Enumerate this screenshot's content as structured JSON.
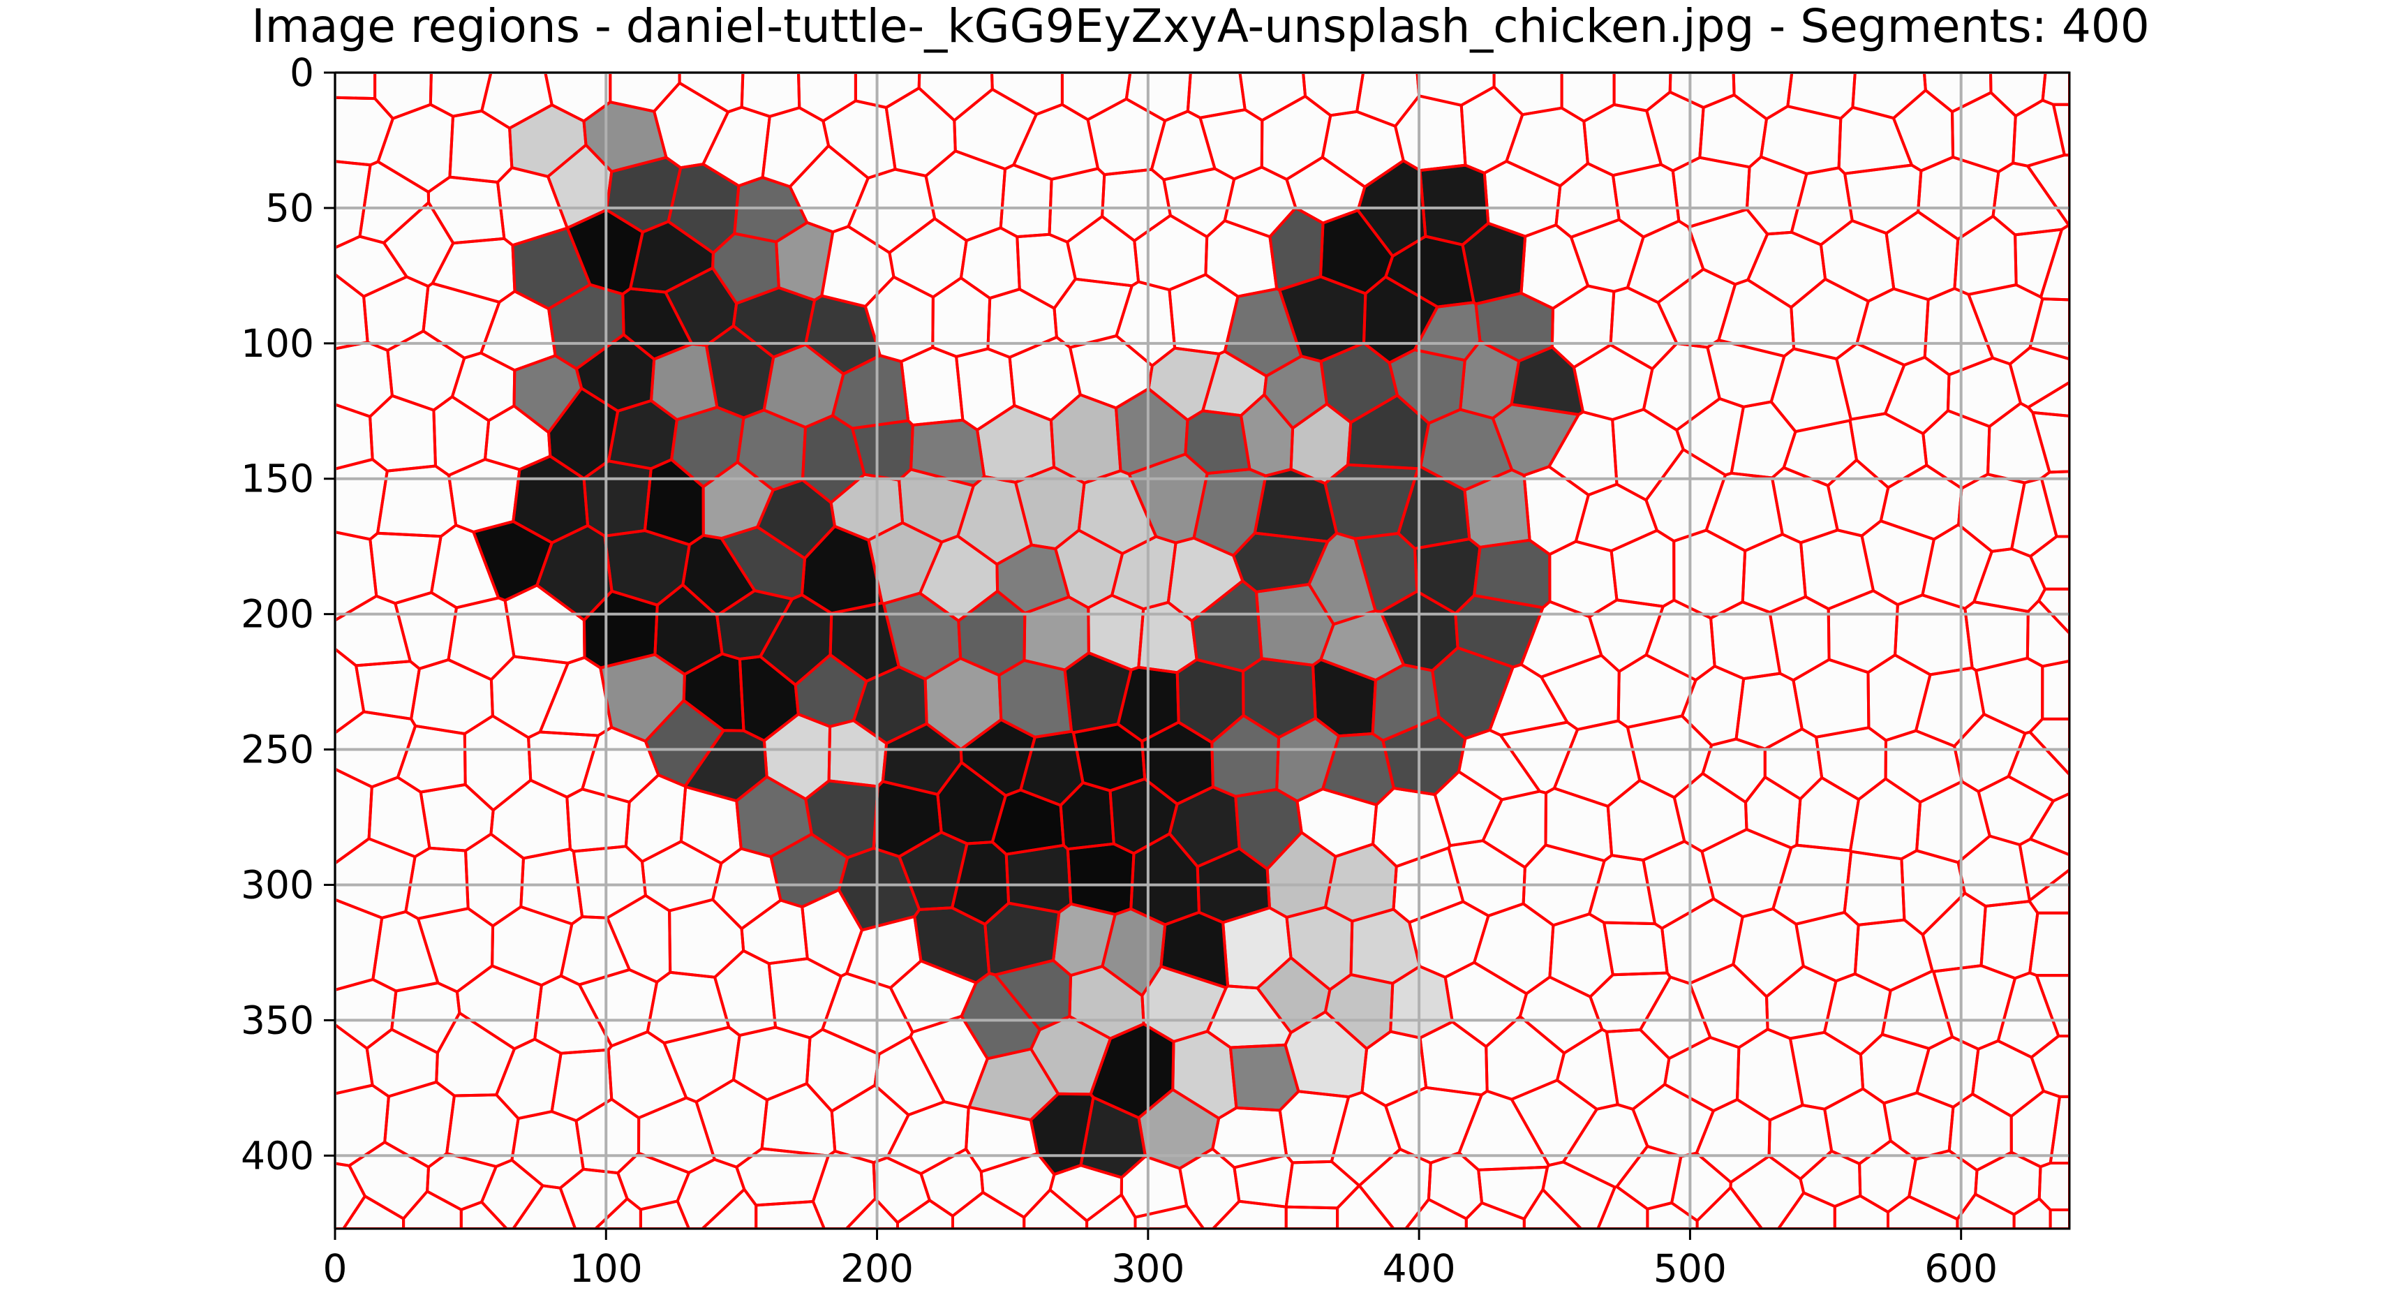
{
  "chart_data": {
    "type": "heatmap",
    "title": "Image regions - daniel-tuttle-_kGG9EyZxyA-unsplash_chicken.jpg - Segments: 400",
    "xlabel": "",
    "ylabel": "",
    "xlim": [
      0,
      640
    ],
    "ylim": [
      427,
      0
    ],
    "x_ticks": [
      0,
      100,
      200,
      300,
      400,
      500,
      600
    ],
    "y_ticks": [
      0,
      50,
      100,
      150,
      200,
      250,
      300,
      350,
      400
    ],
    "grid": true,
    "segments": 400,
    "colormap": "gray",
    "boundary_color": "#ff0000",
    "grid_color": "#b0b0b0",
    "seed_grid_step": 23,
    "subject_shape": {
      "body": [
        [
          70,
          100
        ],
        [
          75,
          60
        ],
        [
          95,
          40
        ],
        [
          140,
          22
        ],
        [
          155,
          30
        ],
        [
          175,
          60
        ],
        [
          195,
          110
        ],
        [
          230,
          125
        ],
        [
          270,
          130
        ],
        [
          330,
          110
        ],
        [
          355,
          55
        ],
        [
          385,
          35
        ],
        [
          415,
          30
        ],
        [
          435,
          60
        ],
        [
          445,
          100
        ],
        [
          445,
          180
        ],
        [
          425,
          230
        ],
        [
          390,
          265
        ],
        [
          345,
          290
        ],
        [
          330,
          320
        ],
        [
          300,
          340
        ],
        [
          275,
          330
        ],
        [
          250,
          320
        ],
        [
          230,
          330
        ],
        [
          185,
          315
        ],
        [
          165,
          300
        ],
        [
          150,
          270
        ],
        [
          120,
          270
        ],
        [
          95,
          250
        ],
        [
          85,
          200
        ],
        [
          70,
          180
        ]
      ],
      "legs": [
        [
          240,
          320
        ],
        [
          320,
          320
        ],
        [
          345,
          370
        ],
        [
          330,
          400
        ],
        [
          290,
          405
        ],
        [
          250,
          400
        ],
        [
          230,
          375
        ]
      ],
      "shadow": [
        [
          250,
          315
        ],
        [
          380,
          285
        ],
        [
          420,
          330
        ],
        [
          400,
          360
        ],
        [
          340,
          365
        ],
        [
          290,
          380
        ],
        [
          230,
          370
        ]
      ],
      "comb": [
        [
          60,
          20
        ],
        [
          90,
          12
        ],
        [
          110,
          18
        ],
        [
          120,
          40
        ],
        [
          90,
          45
        ],
        [
          70,
          35
        ]
      ],
      "dark_blobs": [
        [
          120,
          80,
          28
        ],
        [
          110,
          135,
          25
        ],
        [
          85,
          175,
          28
        ],
        [
          125,
          180,
          30
        ],
        [
          150,
          215,
          30
        ],
        [
          180,
          200,
          20
        ],
        [
          385,
          75,
          28
        ],
        [
          415,
          60,
          20
        ],
        [
          240,
          280,
          40
        ],
        [
          285,
          260,
          35
        ],
        [
          310,
          300,
          30
        ],
        [
          365,
          220,
          18
        ],
        [
          285,
          390,
          25
        ],
        [
          290,
          360,
          15
        ]
      ],
      "light_blobs": [
        [
          220,
          170,
          30
        ],
        [
          270,
          155,
          30
        ],
        [
          300,
          190,
          25
        ],
        [
          365,
          140,
          14
        ],
        [
          320,
          120,
          12
        ],
        [
          180,
          250,
          20
        ],
        [
          300,
          360,
          30
        ],
        [
          370,
          320,
          30
        ]
      ]
    }
  }
}
